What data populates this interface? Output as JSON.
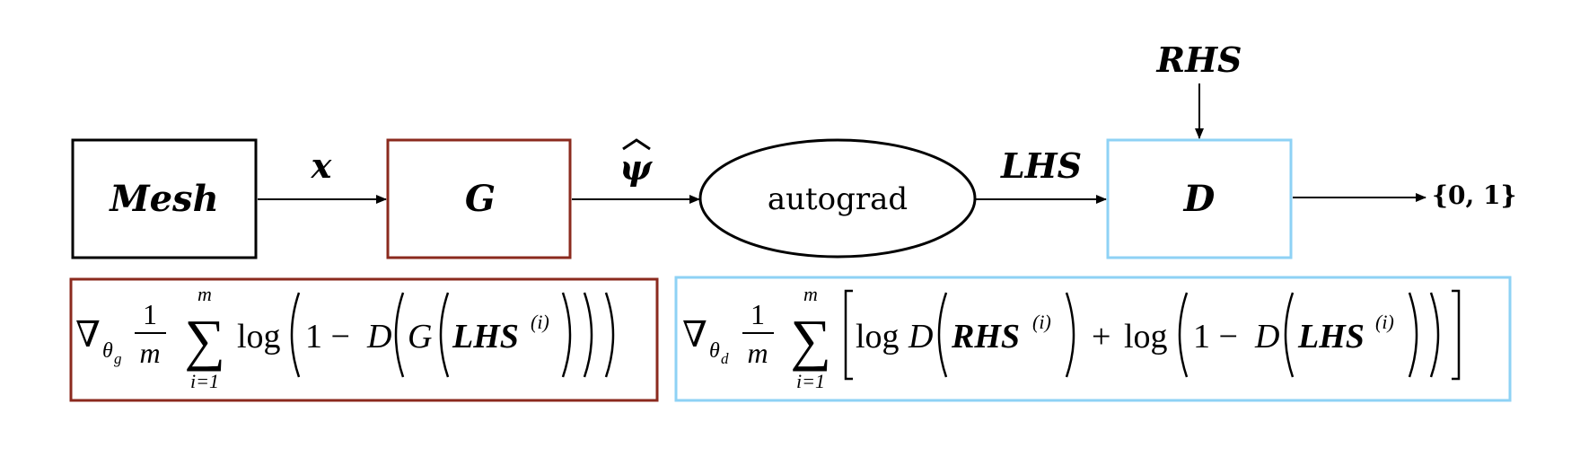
{
  "diagram": {
    "nodes": {
      "mesh": {
        "label": "Mesh",
        "stroke": "#000000"
      },
      "generator": {
        "label": "G",
        "stroke": "#8B2A1E"
      },
      "autograd": {
        "label": "autograd",
        "stroke": "#000000"
      },
      "discriminator": {
        "label": "D",
        "stroke": "#8ED2F5"
      }
    },
    "edges": {
      "mesh_to_g": "x",
      "g_to_autograd": "ψ",
      "autograd_to_d": "LHS",
      "rhs_to_d": "RHS",
      "d_output": "{0, 1}"
    },
    "formulas": {
      "generator_loss": {
        "stroke": "#8B2A1E",
        "nabla": "∇",
        "subscript": "θ",
        "subsub": "g",
        "frac_num": "1",
        "frac_den": "m",
        "sum": "∑",
        "sum_top": "m",
        "sum_bottom": "i=1",
        "log": "log",
        "one_minus": "1 −",
        "D": "D",
        "G": "G",
        "arg": "LHS",
        "arg_sup": "(i)"
      },
      "discriminator_loss": {
        "stroke": "#8ED2F5",
        "nabla": "∇",
        "subscript": "θ",
        "subsub": "d",
        "frac_num": "1",
        "frac_den": "m",
        "sum": "∑",
        "sum_top": "m",
        "sum_bottom": "i=1",
        "log1": "log",
        "D1": "D",
        "arg1": "RHS",
        "arg1_sup": "(i)",
        "plus": "+",
        "log2": "log",
        "one_minus": "1 −",
        "D2": "D",
        "arg2": "LHS",
        "arg2_sup": "(i)"
      }
    }
  }
}
